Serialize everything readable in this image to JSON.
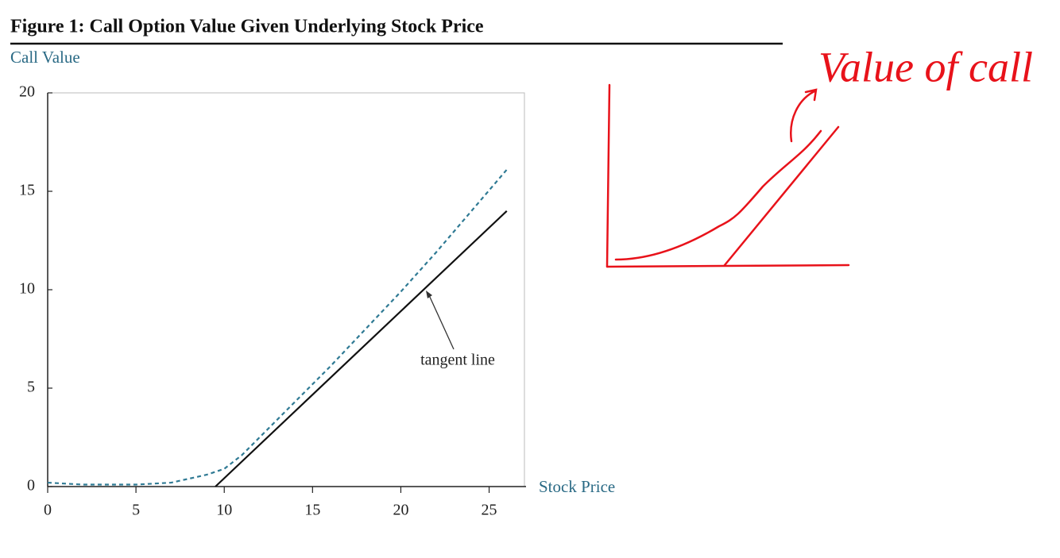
{
  "chart_data": {
    "type": "line",
    "title": "Figure 1: Call Option Value Given Underlying Stock Price",
    "y_label": "Call Value",
    "x_label": "Stock Price",
    "annotation": "tangent line",
    "handwritten_note": "Value of call",
    "xlim": [
      0,
      27
    ],
    "ylim": [
      0,
      20
    ],
    "xticks": [
      0,
      5,
      10,
      15,
      20,
      25
    ],
    "yticks": [
      0,
      5,
      10,
      15,
      20
    ],
    "series": [
      {
        "color": "#2f7a94",
        "dashed": true,
        "x": [
          0,
          2,
          5,
          7,
          8,
          9,
          10,
          11,
          12,
          14,
          16,
          18,
          20,
          22,
          24,
          26
        ],
        "values": [
          0.2,
          0.1,
          0.1,
          0.2,
          0.4,
          0.6,
          0.9,
          1.6,
          2.5,
          4.3,
          6.1,
          8.0,
          9.9,
          11.9,
          14.0,
          16.1
        ]
      },
      {
        "color": "#111111",
        "dashed": false,
        "x": [
          9.5,
          26
        ],
        "values": [
          0,
          14
        ]
      }
    ]
  }
}
